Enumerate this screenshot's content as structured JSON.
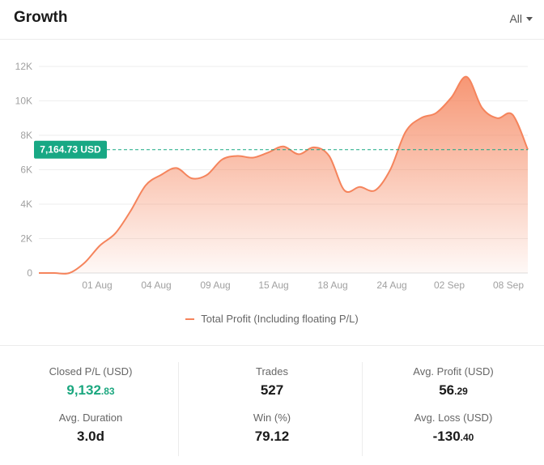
{
  "header": {
    "title": "Growth",
    "filter_label": "All"
  },
  "colors": {
    "accent": "#f5845c",
    "marker": "#18a884",
    "grid": "#eeeeee",
    "axis_text": "#a0a0a0"
  },
  "chart_data": {
    "type": "area",
    "title": "",
    "xlabel": "",
    "ylabel": "",
    "ylim": [
      0,
      12000
    ],
    "yticks": [
      0,
      2000,
      4000,
      6000,
      8000,
      10000,
      12000
    ],
    "ytick_labels": [
      "0",
      "2K",
      "4K",
      "6K",
      "8K",
      "10K",
      "12K"
    ],
    "xticks": [
      "01 Aug",
      "04 Aug",
      "09 Aug",
      "15 Aug",
      "18 Aug",
      "24 Aug",
      "02 Sep",
      "08 Sep"
    ],
    "grid": true,
    "legend_position": "bottom",
    "current_marker": {
      "value": 7164.73,
      "label": "7,164.73 USD"
    },
    "series": [
      {
        "name": "Total Profit (Including floating P/L)",
        "values": [
          0,
          0,
          0,
          600,
          1600,
          2300,
          3600,
          5100,
          5700,
          6100,
          5500,
          5700,
          6600,
          6800,
          6700,
          7000,
          7350,
          6900,
          7300,
          6800,
          4800,
          5000,
          4800,
          6000,
          8200,
          9000,
          9300,
          10200,
          11400,
          9600,
          9000,
          9200,
          7164.73
        ]
      }
    ]
  },
  "stats": {
    "closed_pl": {
      "label": "Closed P/L (USD)",
      "int": "9,132",
      "dec": ".83"
    },
    "avg_duration": {
      "label": "Avg. Duration",
      "value": "3.0d"
    },
    "trades": {
      "label": "Trades",
      "value": "527"
    },
    "win": {
      "label": "Win (%)",
      "value": "79.12"
    },
    "avg_profit": {
      "label": "Avg. Profit (USD)",
      "int": "56",
      "dec": ".29"
    },
    "avg_loss": {
      "label": "Avg. Loss (USD)",
      "int": "-130",
      "dec": ".40"
    }
  }
}
